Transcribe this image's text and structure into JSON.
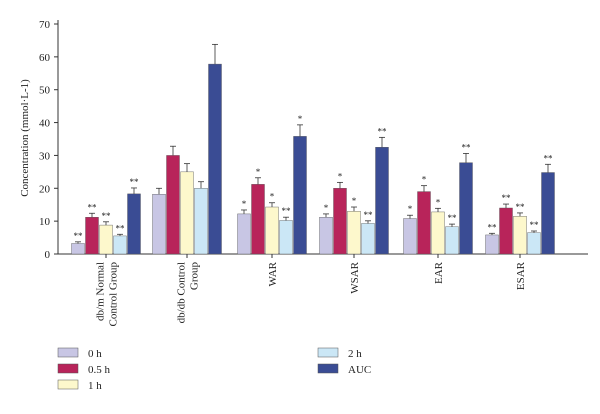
{
  "chart_data": {
    "type": "bar",
    "ylabel": "Concentration (mmol·L-1)",
    "ylim": [
      0,
      70
    ],
    "yticks": [
      0,
      10,
      20,
      30,
      40,
      50,
      60,
      70
    ],
    "grid": false,
    "legend_placement": "bottom",
    "categories": [
      "db/m Normal Control Group",
      "db/db Control Group",
      "WAR",
      "WSAR",
      "EAR",
      "ESAR"
    ],
    "series": [
      {
        "name": "0 h",
        "color": "#c8c6e4",
        "values": [
          3.2,
          18.2,
          12.2,
          11.2,
          10.8,
          5.8
        ],
        "errors": [
          0.5,
          1.8,
          1.2,
          1.0,
          1.0,
          0.5
        ],
        "marks": [
          "**",
          "",
          "*",
          "*",
          "*",
          "**"
        ]
      },
      {
        "name": "0.5 h",
        "color": "#b8245a",
        "values": [
          11.2,
          30.0,
          21.2,
          20.0,
          19.0,
          14.0
        ],
        "errors": [
          1.2,
          2.8,
          2.0,
          1.8,
          1.8,
          1.2
        ],
        "marks": [
          "**",
          "",
          "*",
          "*",
          "*",
          "**"
        ]
      },
      {
        "name": "1 h",
        "color": "#fdf8cc",
        "values": [
          8.8,
          25.0,
          14.3,
          13.0,
          12.8,
          11.5
        ],
        "errors": [
          1.0,
          2.5,
          1.3,
          1.3,
          1.1,
          1.0
        ],
        "marks": [
          "**",
          "",
          "*",
          "*",
          "*",
          "**"
        ]
      },
      {
        "name": "2 h",
        "color": "#cbe7f6",
        "values": [
          5.5,
          20.0,
          10.2,
          9.3,
          8.3,
          6.5
        ],
        "errors": [
          0.5,
          2.0,
          1.0,
          0.8,
          0.8,
          0.5
        ],
        "marks": [
          "**",
          "",
          "**",
          "**",
          "**",
          "**"
        ]
      },
      {
        "name": "AUC",
        "color": "#3a4c94",
        "values": [
          18.3,
          57.8,
          35.8,
          32.5,
          27.8,
          24.8
        ],
        "errors": [
          1.8,
          6.0,
          3.5,
          3.0,
          2.8,
          2.5
        ],
        "marks": [
          "**",
          "",
          "*",
          "**",
          "**",
          "**"
        ]
      }
    ]
  }
}
